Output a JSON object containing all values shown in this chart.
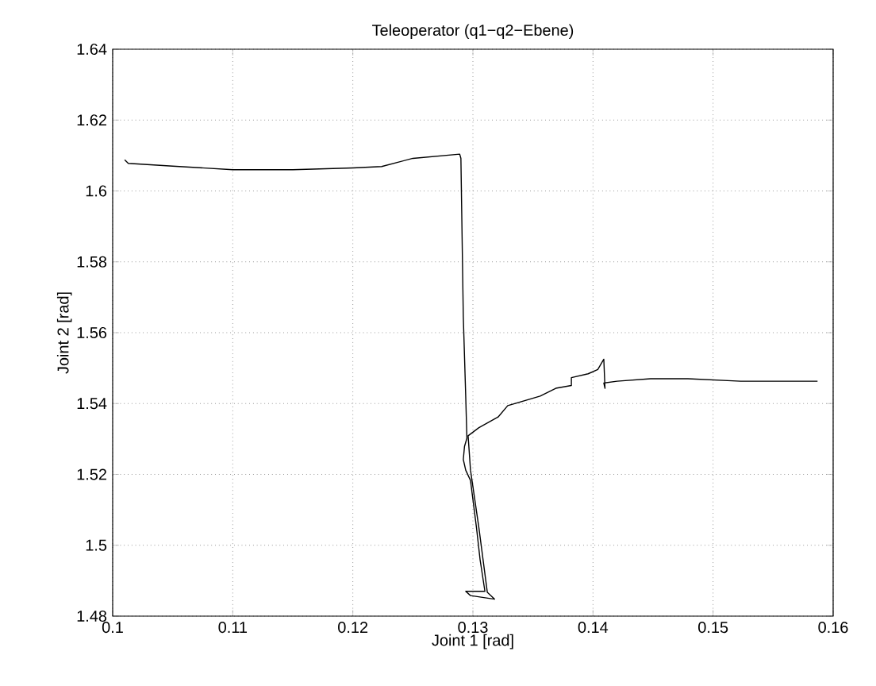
{
  "chart_data": {
    "type": "line",
    "title": "Teleoperator (q1−q2−Ebene)",
    "xlabel": "Joint 1 [rad]",
    "ylabel": "Joint 2 [rad]",
    "xlim": [
      0.1,
      0.16
    ],
    "ylim": [
      1.48,
      1.64
    ],
    "xticks": [
      0.1,
      0.11,
      0.12,
      0.13,
      0.14,
      0.15,
      0.16
    ],
    "yticks": [
      1.48,
      1.5,
      1.52,
      1.54,
      1.56,
      1.58,
      1.6,
      1.62,
      1.64
    ],
    "grid": true,
    "series": [
      {
        "color": "#000000",
        "x": [
          0.101,
          0.1013,
          0.105,
          0.11,
          0.115,
          0.12,
          0.1224,
          0.125,
          0.1289,
          0.129,
          0.1292,
          0.1294,
          0.1295,
          0.1293,
          0.1292,
          0.1294,
          0.1298,
          0.1303,
          0.1306,
          0.131,
          0.1294,
          0.1298,
          0.1318,
          0.1312,
          0.1305,
          0.1298,
          0.1296,
          0.1305,
          0.1321,
          0.1329,
          0.1356,
          0.1369,
          0.1382,
          0.1382,
          0.1396,
          0.1404,
          0.1409,
          0.141,
          0.1409,
          0.142,
          0.1448,
          0.1479,
          0.1523,
          0.1587
        ],
        "values": [
          1.6088,
          1.6078,
          1.607,
          1.606,
          1.606,
          1.6065,
          1.6069,
          1.6092,
          1.6104,
          1.6092,
          1.5645,
          1.5421,
          1.5302,
          1.5279,
          1.5242,
          1.5212,
          1.5183,
          1.5049,
          1.4959,
          1.487,
          1.487,
          1.4858,
          1.4848,
          1.4867,
          1.5049,
          1.5212,
          1.5309,
          1.5332,
          1.5362,
          1.5394,
          1.5421,
          1.5443,
          1.5451,
          1.5473,
          1.5484,
          1.5496,
          1.5525,
          1.5443,
          1.5458,
          1.5463,
          1.547,
          1.547,
          1.5463,
          1.5463
        ]
      }
    ]
  }
}
